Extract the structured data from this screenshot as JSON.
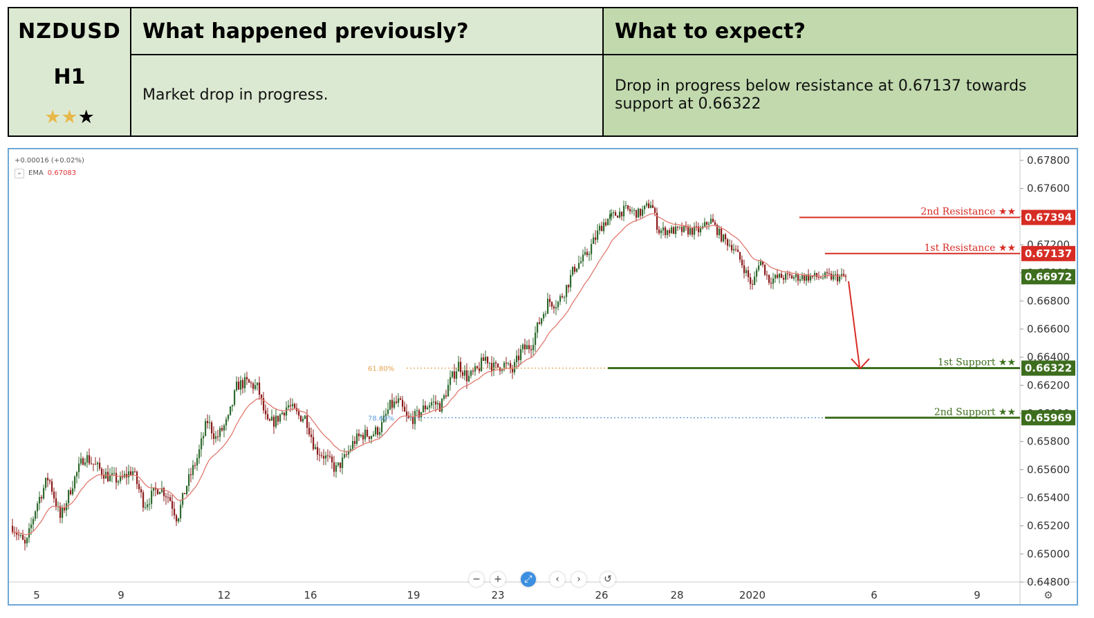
{
  "header": {
    "symbol": "NZDUSD",
    "timeframe": "H1",
    "rating_stars": {
      "filled": 2,
      "total": 3
    },
    "prev_title": "What happened previously?",
    "prev_text": "Market drop in progress.",
    "exp_title": "What to expect?",
    "exp_text": "Drop in progress below resistance at 0.67137 towards support at 0.66322"
  },
  "legend": {
    "change": "+0.00016 (+0.02%)",
    "ema_label": "EMA",
    "ema_value": "0.67083"
  },
  "controls": [
    "−",
    "+",
    "⤢",
    "‹",
    "›",
    "↺"
  ],
  "colors": {
    "up_candle": "#2d6a2d",
    "down_candle": "#8b1a1a",
    "ema": "#e0786e",
    "resistance": "#d62c24",
    "support": "#3d6e1e",
    "current_price": "#3d6e1e",
    "fib_618": "#e3a04a",
    "fib_786": "#5d9bd8",
    "header_left": "#dce9d2",
    "header_right": "#c1d9ad"
  },
  "chart_data": {
    "type": "candlestick",
    "title": "",
    "y_axis": {
      "position": "right",
      "min": 0.648,
      "max": 0.678,
      "ticks": [
        "0.67800",
        "0.67600",
        "0.67400",
        "0.67200",
        "0.67000",
        "0.66800",
        "0.66600",
        "0.66400",
        "0.66200",
        "0.66000",
        "0.65800",
        "0.65600",
        "0.65400",
        "0.65200",
        "0.65000",
        "0.64800"
      ]
    },
    "x_axis": {
      "ticks": [
        "5",
        "9",
        "12",
        "16",
        "19",
        "23",
        "26",
        "28",
        "2020",
        "6",
        "9"
      ]
    },
    "price_path": [
      [
        0,
        0.652
      ],
      [
        0.022,
        0.6505
      ],
      [
        0.04,
        0.6535
      ],
      [
        0.06,
        0.6555
      ],
      [
        0.08,
        0.6525
      ],
      [
        0.1,
        0.655
      ],
      [
        0.12,
        0.657
      ],
      [
        0.14,
        0.6562
      ],
      [
        0.16,
        0.6555
      ],
      [
        0.18,
        0.6552
      ],
      [
        0.2,
        0.656
      ],
      [
        0.22,
        0.6535
      ],
      [
        0.245,
        0.6548
      ],
      [
        0.262,
        0.654
      ],
      [
        0.275,
        0.6525
      ],
      [
        0.29,
        0.6548
      ],
      [
        0.31,
        0.657
      ],
      [
        0.325,
        0.6595
      ],
      [
        0.34,
        0.6582
      ],
      [
        0.36,
        0.6595
      ],
      [
        0.375,
        0.662
      ],
      [
        0.39,
        0.6622
      ],
      [
        0.41,
        0.6618
      ],
      [
        0.425,
        0.6592
      ],
      [
        0.44,
        0.6595
      ],
      [
        0.46,
        0.6606
      ],
      [
        0.478,
        0.6598
      ],
      [
        0.49,
        0.6597
      ],
      [
        0.505,
        0.6575
      ],
      [
        0.52,
        0.657
      ],
      [
        0.54,
        0.656
      ],
      [
        0.555,
        0.6568
      ],
      [
        0.57,
        0.658
      ],
      [
        0.585,
        0.6585
      ],
      [
        0.6,
        0.6585
      ],
      [
        0.615,
        0.659
      ],
      [
        0.63,
        0.6605
      ],
      [
        0.645,
        0.6608
      ],
      [
        0.66,
        0.6595
      ],
      [
        0.675,
        0.6598
      ],
      [
        0.69,
        0.6605
      ],
      [
        0.7,
        0.6608
      ],
      [
        0.715,
        0.6605
      ],
      [
        0.73,
        0.6622
      ],
      [
        0.745,
        0.6635
      ],
      [
        0.76,
        0.6625
      ],
      [
        0.775,
        0.663
      ],
      [
        0.79,
        0.664
      ],
      [
        0.805,
        0.6632
      ],
      [
        0.82,
        0.6635
      ],
      [
        0.835,
        0.663
      ],
      [
        0.85,
        0.6645
      ],
      [
        0.865,
        0.6648
      ],
      [
        0.88,
        0.6665
      ],
      [
        0.895,
        0.668
      ],
      [
        0.91,
        0.6678
      ],
      [
        0.925,
        0.669
      ],
      [
        0.94,
        0.6705
      ],
      [
        0.955,
        0.671
      ],
      [
        0.97,
        0.6722
      ],
      [
        0.985,
        0.6735
      ],
      [
        1.0,
        0.674
      ]
    ],
    "post_path": [
      [
        0,
        0.674
      ],
      [
        0.06,
        0.6745
      ],
      [
        0.12,
        0.6742
      ],
      [
        0.17,
        0.675
      ],
      [
        0.2,
        0.673
      ],
      [
        0.25,
        0.673
      ],
      [
        0.32,
        0.673
      ],
      [
        0.38,
        0.673
      ],
      [
        0.42,
        0.6738
      ],
      [
        0.47,
        0.6725
      ],
      [
        0.52,
        0.6718
      ],
      [
        0.56,
        0.6705
      ],
      [
        0.6,
        0.669
      ],
      [
        0.63,
        0.671
      ],
      [
        0.67,
        0.6695
      ],
      [
        0.72,
        0.6697
      ]
    ],
    "ema_current": 0.67083,
    "levels": [
      {
        "name": "2nd Resistance ★★",
        "price": 0.67394,
        "label": "0.67394",
        "kind": "resistance"
      },
      {
        "name": "1st Resistance ★★",
        "price": 0.67137,
        "label": "0.67137",
        "kind": "resistance"
      },
      {
        "name": "",
        "price": 0.66972,
        "label": "0.66972",
        "kind": "current"
      },
      {
        "name": "1st Support ★★",
        "price": 0.66322,
        "label": "0.66322",
        "kind": "support"
      },
      {
        "name": "2nd Support ★★",
        "price": 0.65969,
        "label": "0.65969",
        "kind": "support"
      }
    ],
    "fib_levels": [
      {
        "label": "61.80%",
        "price": 0.66322
      },
      {
        "label": "78.60%",
        "price": 0.65969
      }
    ],
    "projection": {
      "from": 0.6694,
      "to": 0.6632
    }
  }
}
